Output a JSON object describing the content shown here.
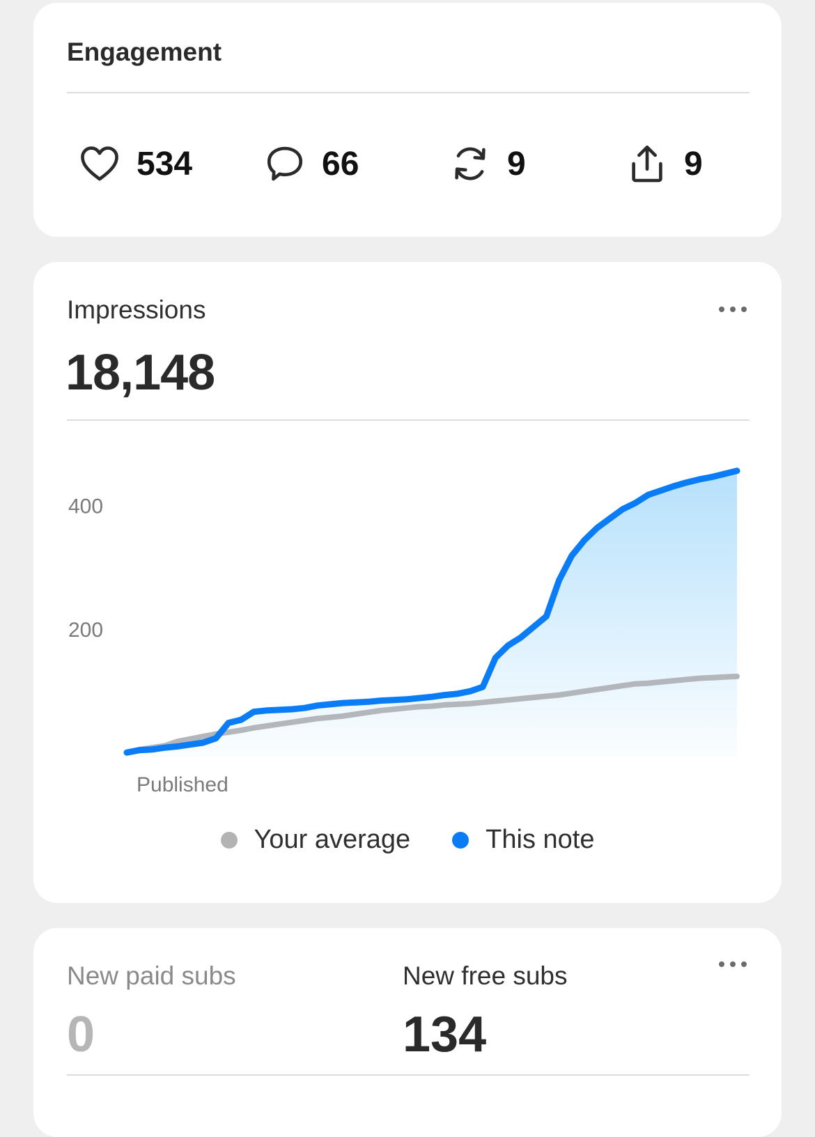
{
  "engagement": {
    "title": "Engagement",
    "likes": "534",
    "comments": "66",
    "restacks": "9",
    "shares": "9"
  },
  "impressions": {
    "label": "Impressions",
    "value": "18,148",
    "chart_data": {
      "type": "area",
      "x": [
        0,
        1,
        2,
        3,
        4,
        5,
        6,
        7,
        8,
        9,
        10,
        11,
        12,
        13,
        14,
        15,
        16,
        17,
        18,
        19,
        20,
        21,
        22,
        23,
        24,
        25,
        26,
        27,
        28,
        29,
        30,
        31,
        32,
        33,
        34,
        35,
        36,
        37,
        38,
        39,
        40,
        41,
        42,
        43,
        44,
        45,
        46,
        47,
        48
      ],
      "x_tick_label": "Published",
      "y_ticks": [
        200,
        400
      ],
      "ylim": [
        0,
        450
      ],
      "series": [
        {
          "name": "Your average",
          "color": "#b3b7bb",
          "values": [
            2,
            7,
            10,
            13,
            20,
            24,
            28,
            32,
            35,
            38,
            42,
            45,
            48,
            51,
            54,
            57,
            59,
            61,
            64,
            67,
            70,
            72,
            74,
            76,
            77,
            79,
            80,
            81,
            83,
            85,
            87,
            89,
            91,
            93,
            95,
            98,
            101,
            104,
            107,
            110,
            113,
            114,
            116,
            118,
            120,
            122,
            123,
            124,
            125
          ]
        },
        {
          "name": "This note",
          "color": "#0a7cf6",
          "values": [
            2,
            6,
            7,
            10,
            12,
            15,
            18,
            25,
            50,
            55,
            68,
            70,
            71,
            72,
            74,
            78,
            80,
            82,
            83,
            84,
            86,
            87,
            88,
            90,
            92,
            95,
            97,
            101,
            108,
            155,
            175,
            188,
            205,
            222,
            280,
            320,
            345,
            365,
            380,
            395,
            405,
            418,
            425,
            432,
            438,
            443,
            447,
            452,
            457
          ]
        }
      ]
    },
    "legend": {
      "average": "Your average",
      "note": "This note"
    }
  },
  "subs": {
    "paid_label": "New paid subs",
    "paid_value": "0",
    "free_label": "New free subs",
    "free_value": "134"
  }
}
